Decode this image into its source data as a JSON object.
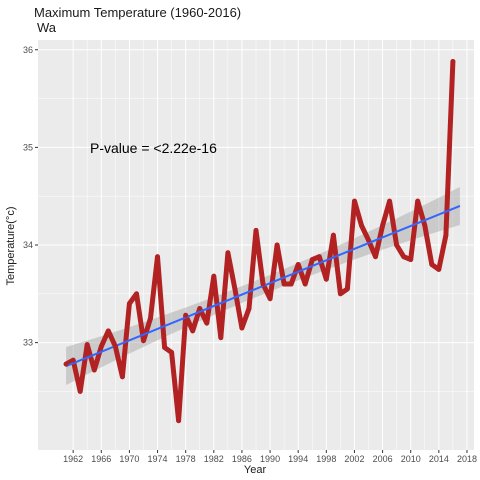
{
  "chart_data": {
    "type": "line",
    "title": "Maximum Temperature (1960-2016)",
    "subtitle": "Wa",
    "xlabel": "Year",
    "ylabel": "Temperature(°c)",
    "annotation": "P-value = <2.22e-16",
    "xlim": [
      1957,
      2019
    ],
    "ylim": [
      31.9,
      36.1
    ],
    "x_ticks": [
      1962,
      1966,
      1970,
      1974,
      1978,
      1982,
      1986,
      1990,
      1994,
      1998,
      2002,
      2006,
      2010,
      2014,
      2018
    ],
    "y_ticks": [
      33,
      34,
      35,
      36
    ],
    "y_tick_labels": [
      "33",
      "34",
      "35",
      "36"
    ],
    "grid": true,
    "series": [
      {
        "x": [
          1961,
          1962,
          1963,
          1964,
          1965,
          1966,
          1967,
          1968,
          1969,
          1970,
          1971,
          1972,
          1973,
          1974,
          1975,
          1976,
          1977,
          1978,
          1979,
          1980,
          1981,
          1982,
          1983,
          1984,
          1985,
          1986,
          1987,
          1988,
          1989,
          1990,
          1991,
          1992,
          1993,
          1994,
          1995,
          1996,
          1997,
          1998,
          1999,
          2000,
          2001,
          2002,
          2003,
          2004,
          2005,
          2006,
          2007,
          2008,
          2009,
          2010,
          2011,
          2012,
          2013,
          2014,
          2015,
          2016
        ],
        "values": [
          32.78,
          32.82,
          32.5,
          32.98,
          32.72,
          32.96,
          33.12,
          32.96,
          32.65,
          33.4,
          33.5,
          33.02,
          33.25,
          33.88,
          32.95,
          32.9,
          32.2,
          33.28,
          33.12,
          33.35,
          33.2,
          33.68,
          33.05,
          33.92,
          33.55,
          33.15,
          33.35,
          34.15,
          33.6,
          33.45,
          34.0,
          33.6,
          33.6,
          33.8,
          33.6,
          33.85,
          33.88,
          33.65,
          34.1,
          33.5,
          33.55,
          34.45,
          34.2,
          34.05,
          33.88,
          34.2,
          34.45,
          34.0,
          33.88,
          33.85,
          34.45,
          34.2,
          33.8,
          33.75,
          34.1,
          35.88
        ]
      }
    ],
    "trend": {
      "x_start": 1961,
      "y_start": 32.76,
      "x_end": 2017,
      "y_end": 34.4
    },
    "colors": {
      "line": "#b22222",
      "trend": "#3366ff",
      "ribbon": "#999999",
      "panel": "#ebebeb",
      "grid": "#ffffff"
    }
  }
}
